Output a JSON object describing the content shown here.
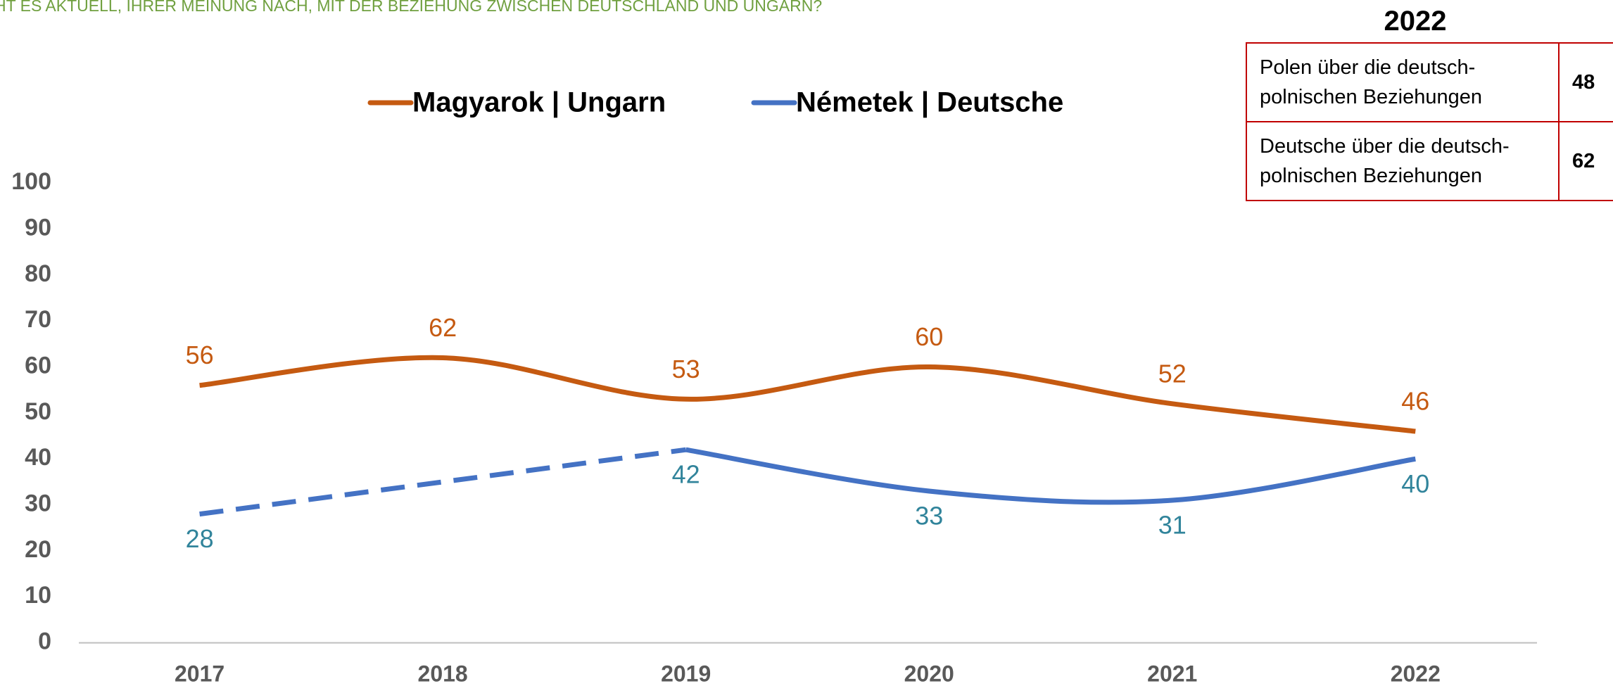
{
  "chart_data": {
    "type": "line",
    "title": "HT ES AKTUELL, IHRER MEINUNG NACH, MIT DER BEZIEHUNG ZWISCHEN DEUTSCHLAND UND UNGARN?",
    "categories": [
      "2017",
      "2018",
      "2019",
      "2020",
      "2021",
      "2022"
    ],
    "series": [
      {
        "name": "Magyarok | Ungarn",
        "color": "#c55a11",
        "label_color": "#c55a11",
        "values": [
          56,
          62,
          53,
          60,
          52,
          46
        ]
      },
      {
        "name": "Németek | Deutsche",
        "color": "#4472c4",
        "label_color": "#31849b",
        "values": [
          28,
          null,
          42,
          33,
          31,
          40
        ]
      }
    ],
    "ylim": [
      0,
      100
    ],
    "yticks": [
      0,
      10,
      20,
      30,
      40,
      50,
      60,
      70,
      80,
      90,
      100
    ],
    "grid": false,
    "legend": "top"
  },
  "table": {
    "title": "2022",
    "rows": [
      [
        "Polen über die deutsch-polnischen Beziehungen",
        48
      ],
      [
        "Deutsche über die deutsch-polnischen Beziehungen",
        62
      ]
    ]
  }
}
